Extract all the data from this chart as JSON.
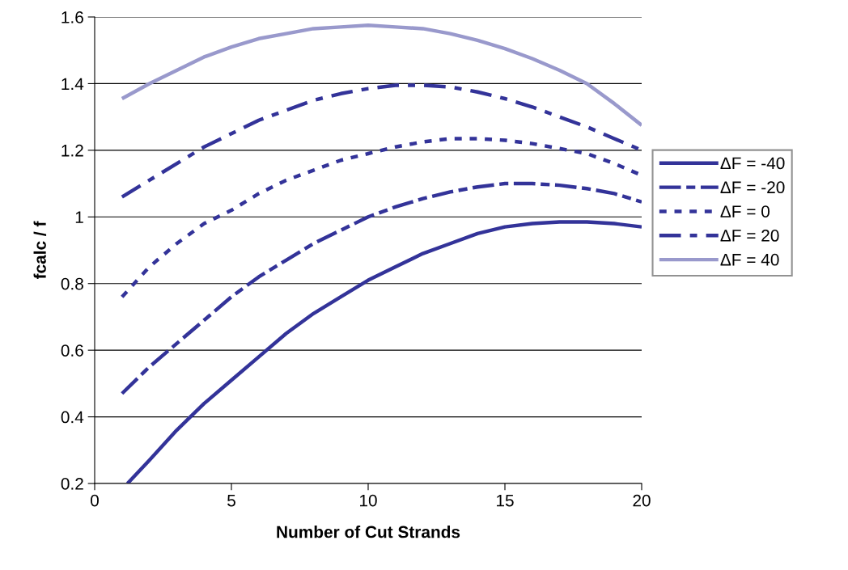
{
  "chart_data": {
    "type": "line",
    "xlabel": "Number of Cut Strands",
    "ylabel": "fcalc / f",
    "x": [
      1,
      2,
      3,
      4,
      5,
      6,
      7,
      8,
      9,
      10,
      11,
      12,
      13,
      14,
      15,
      16,
      17,
      18,
      19,
      20
    ],
    "series": [
      {
        "name": "ΔF = -40",
        "color": "#333399",
        "line_style": "solid",
        "x": [
          1.2,
          2,
          3,
          4,
          5,
          6,
          7,
          8,
          9,
          10,
          11,
          12,
          13,
          14,
          15,
          16,
          17,
          18,
          19,
          20
        ],
        "values": [
          0.2,
          0.27,
          0.36,
          0.44,
          0.51,
          0.58,
          0.65,
          0.71,
          0.76,
          0.81,
          0.85,
          0.89,
          0.92,
          0.95,
          0.97,
          0.98,
          0.985,
          0.985,
          0.98,
          0.97
        ]
      },
      {
        "name": "ΔF = -20",
        "color": "#333399",
        "line_style": "dashed",
        "values": [
          0.47,
          0.55,
          0.62,
          0.69,
          0.76,
          0.82,
          0.87,
          0.92,
          0.96,
          1.0,
          1.03,
          1.055,
          1.075,
          1.09,
          1.1,
          1.1,
          1.095,
          1.085,
          1.07,
          1.045
        ]
      },
      {
        "name": "ΔF = 0",
        "color": "#333399",
        "line_style": "dotted",
        "values": [
          0.76,
          0.85,
          0.92,
          0.98,
          1.02,
          1.07,
          1.11,
          1.14,
          1.17,
          1.19,
          1.21,
          1.225,
          1.235,
          1.235,
          1.23,
          1.22,
          1.205,
          1.19,
          1.16,
          1.125
        ]
      },
      {
        "name": "ΔF = 20",
        "color": "#333399",
        "line_style": "dashdot",
        "values": [
          1.06,
          1.11,
          1.16,
          1.21,
          1.25,
          1.29,
          1.32,
          1.35,
          1.37,
          1.385,
          1.395,
          1.395,
          1.39,
          1.375,
          1.355,
          1.33,
          1.3,
          1.27,
          1.235,
          1.2
        ]
      },
      {
        "name": "ΔF = 40",
        "color": "#9999cc",
        "line_style": "solid",
        "values": [
          1.355,
          1.4,
          1.44,
          1.48,
          1.51,
          1.535,
          1.55,
          1.565,
          1.57,
          1.575,
          1.57,
          1.565,
          1.55,
          1.53,
          1.505,
          1.475,
          1.44,
          1.4,
          1.34,
          1.275
        ]
      }
    ],
    "xlim": [
      0,
      20
    ],
    "xticks": [
      0,
      5,
      10,
      15,
      20
    ],
    "ylim": [
      0.2,
      1.6
    ],
    "yticks": [
      {
        "value": 0.2,
        "label": "0.2"
      },
      {
        "value": 0.4,
        "label": "0.4"
      },
      {
        "value": 0.6,
        "label": "0.6"
      },
      {
        "value": 0.8,
        "label": "0.8"
      },
      {
        "value": 1,
        "label": "1"
      },
      {
        "value": 1.2,
        "label": "1.2"
      },
      {
        "value": 1.4,
        "label": "1.4"
      },
      {
        "value": 1.6,
        "label": "1.6"
      }
    ],
    "grid": "y",
    "legend": "right",
    "marker": "none"
  }
}
